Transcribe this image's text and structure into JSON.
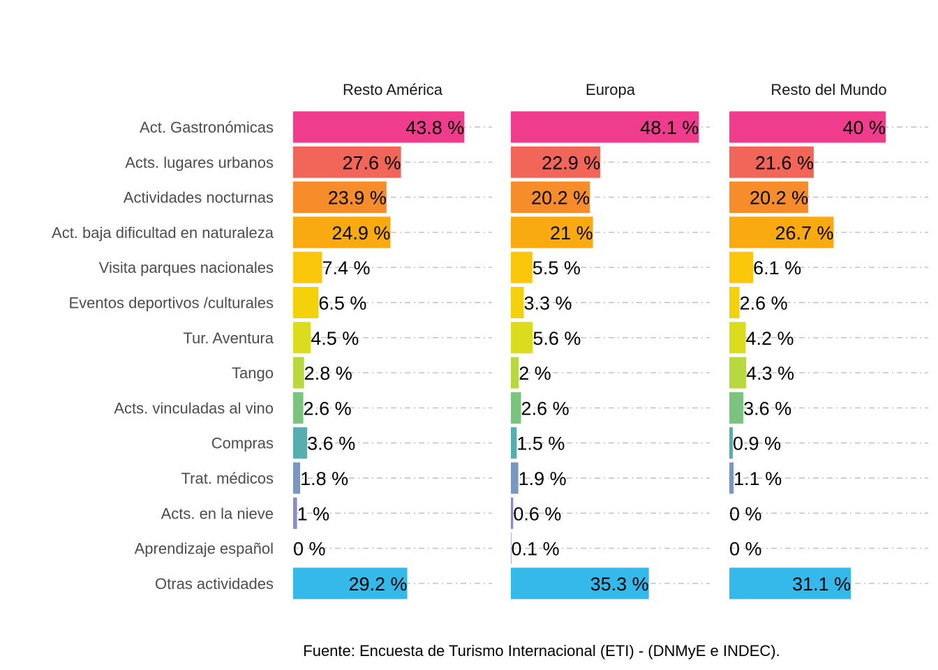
{
  "chart_data": {
    "type": "bar",
    "orientation": "horizontal",
    "categories": [
      "Act. Gastronómicas",
      "Acts. lugares urbanos",
      "Actividades nocturnas",
      "Act. baja dificultad en naturaleza",
      "Visita parques nacionales",
      "Eventos deportivos /culturales",
      "Tur. Aventura",
      "Tango",
      "Acts. vinculadas al vino",
      "Compras",
      "Trat. médicos",
      "Acts. en la nieve",
      "Aprendizaje español",
      "Otras actividades"
    ],
    "colors": [
      "#f03c8c",
      "#f2665a",
      "#f78d2a",
      "#f9aa10",
      "#fac70a",
      "#f3d20b",
      "#dcdc1e",
      "#b9d840",
      "#7ac47f",
      "#55afb0",
      "#7a98bd",
      "#8a8cc2",
      "#5e6fa5",
      "#35b9eb"
    ],
    "xlim": [
      0,
      50
    ],
    "grid": true,
    "unit_suffix": " %",
    "series": [
      {
        "name": "Resto América",
        "values": [
          43.8,
          27.6,
          23.9,
          24.9,
          7.4,
          6.5,
          4.5,
          2.8,
          2.6,
          3.6,
          1.8,
          1,
          0,
          29.2
        ]
      },
      {
        "name": "Europa",
        "values": [
          48.1,
          22.9,
          20.2,
          21,
          5.5,
          3.3,
          5.6,
          2,
          2.6,
          1.5,
          1.9,
          0.6,
          0.1,
          35.3
        ]
      },
      {
        "name": "Resto del Mundo",
        "values": [
          40,
          21.6,
          20.2,
          26.7,
          6.1,
          2.6,
          4.2,
          4.3,
          3.6,
          0.9,
          1.1,
          0,
          0,
          31.1
        ]
      }
    ],
    "caption": "Fuente: Encuesta de Turismo Internacional (ETI) - (DNMyE e INDEC)."
  }
}
